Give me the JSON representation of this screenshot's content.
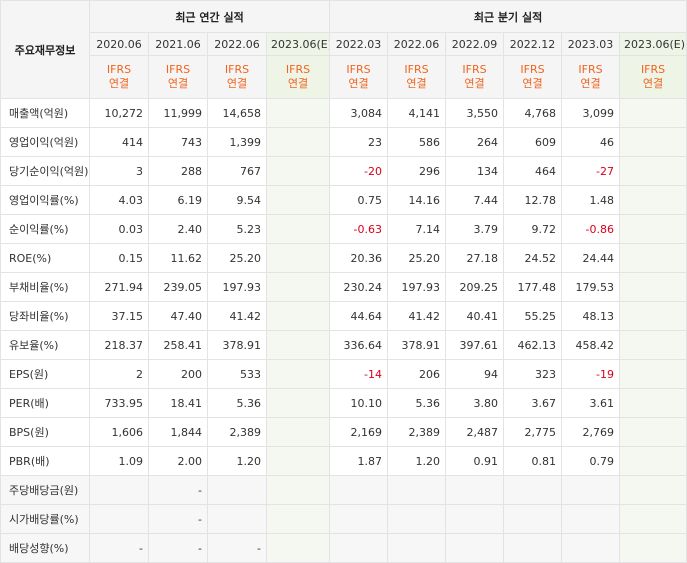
{
  "header": {
    "corner": "주요재무정보",
    "annual_title": "최근 연간 실적",
    "quarter_title": "최근 분기 실적",
    "annual_periods": [
      "2020.06",
      "2021.06",
      "2022.06",
      "2023.06(E)"
    ],
    "quarter_periods": [
      "2022.03",
      "2022.06",
      "2022.09",
      "2022.12",
      "2023.03",
      "2023.06(E)"
    ],
    "ifrs_line1": "IFRS",
    "ifrs_line2": "연결"
  },
  "rows": [
    {
      "label": "매출액(억원)",
      "annual": [
        "10,272",
        "11,999",
        "14,658",
        ""
      ],
      "quarter": [
        "3,084",
        "4,141",
        "3,550",
        "4,768",
        "3,099",
        ""
      ]
    },
    {
      "label": "영업이익(억원)",
      "annual": [
        "414",
        "743",
        "1,399",
        ""
      ],
      "quarter": [
        "23",
        "586",
        "264",
        "609",
        "46",
        ""
      ]
    },
    {
      "label": "당기순이익(억원)",
      "annual": [
        "3",
        "288",
        "767",
        ""
      ],
      "quarter": [
        "-20",
        "296",
        "134",
        "464",
        "-27",
        ""
      ]
    },
    {
      "label": "영업이익률(%)",
      "annual": [
        "4.03",
        "6.19",
        "9.54",
        ""
      ],
      "quarter": [
        "0.75",
        "14.16",
        "7.44",
        "12.78",
        "1.48",
        ""
      ]
    },
    {
      "label": "순이익률(%)",
      "annual": [
        "0.03",
        "2.40",
        "5.23",
        ""
      ],
      "quarter": [
        "-0.63",
        "7.14",
        "3.79",
        "9.72",
        "-0.86",
        ""
      ]
    },
    {
      "label": "ROE(%)",
      "annual": [
        "0.15",
        "11.62",
        "25.20",
        ""
      ],
      "quarter": [
        "20.36",
        "25.20",
        "27.18",
        "24.52",
        "24.44",
        ""
      ]
    },
    {
      "label": "부채비율(%)",
      "annual": [
        "271.94",
        "239.05",
        "197.93",
        ""
      ],
      "quarter": [
        "230.24",
        "197.93",
        "209.25",
        "177.48",
        "179.53",
        ""
      ]
    },
    {
      "label": "당좌비율(%)",
      "annual": [
        "37.15",
        "47.40",
        "41.42",
        ""
      ],
      "quarter": [
        "44.64",
        "41.42",
        "40.41",
        "55.25",
        "48.13",
        ""
      ]
    },
    {
      "label": "유보율(%)",
      "annual": [
        "218.37",
        "258.41",
        "378.91",
        ""
      ],
      "quarter": [
        "336.64",
        "378.91",
        "397.61",
        "462.13",
        "458.42",
        ""
      ]
    },
    {
      "label": "EPS(원)",
      "annual": [
        "2",
        "200",
        "533",
        ""
      ],
      "quarter": [
        "-14",
        "206",
        "94",
        "323",
        "-19",
        ""
      ]
    },
    {
      "label": "PER(배)",
      "annual": [
        "733.95",
        "18.41",
        "5.36",
        ""
      ],
      "quarter": [
        "10.10",
        "5.36",
        "3.80",
        "3.67",
        "3.61",
        ""
      ]
    },
    {
      "label": "BPS(원)",
      "annual": [
        "1,606",
        "1,844",
        "2,389",
        ""
      ],
      "quarter": [
        "2,169",
        "2,389",
        "2,487",
        "2,775",
        "2,769",
        ""
      ]
    },
    {
      "label": "PBR(배)",
      "annual": [
        "1.09",
        "2.00",
        "1.20",
        ""
      ],
      "quarter": [
        "1.87",
        "1.20",
        "0.91",
        "0.81",
        "0.79",
        ""
      ]
    },
    {
      "label": "주당배당금(원)",
      "annual": [
        "",
        "-",
        "",
        ""
      ],
      "quarter": [
        "",
        "",
        "",
        "",
        "",
        ""
      ]
    },
    {
      "label": "시가배당률(%)",
      "annual": [
        "",
        "-",
        "",
        ""
      ],
      "quarter": [
        "",
        "",
        "",
        "",
        "",
        ""
      ]
    },
    {
      "label": "배당성향(%)",
      "annual": [
        "-",
        "-",
        "-",
        ""
      ],
      "quarter": [
        "",
        "",
        "",
        "",
        "",
        ""
      ]
    }
  ],
  "colors": {
    "ifrs": "#f0641e",
    "negative": "#d9001b",
    "estimate_bg": "#f4f8f0"
  }
}
